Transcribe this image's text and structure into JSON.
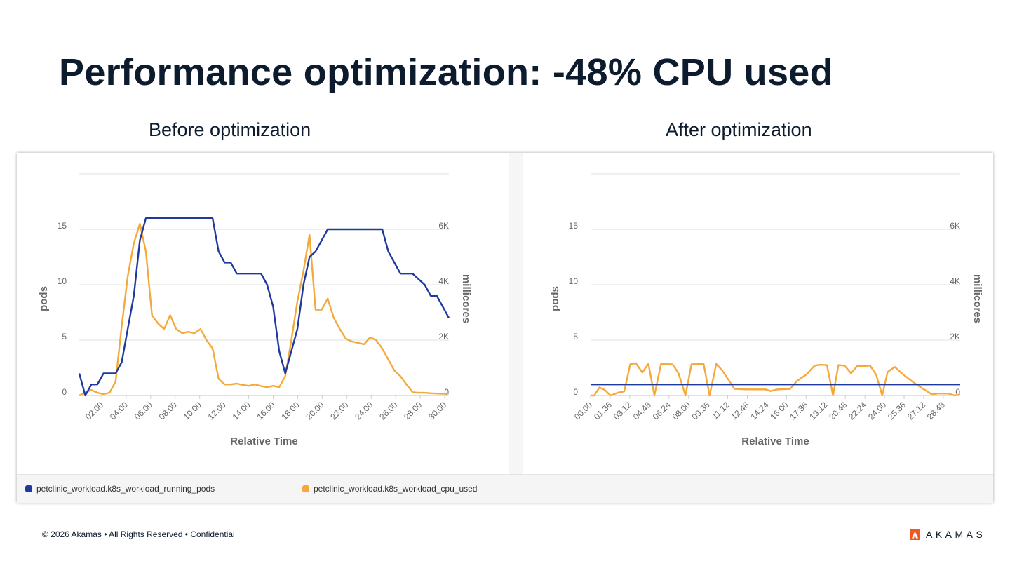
{
  "slide": {
    "title": "Performance optimization: -48% CPU used",
    "footer": "© 2026 Akamas • All Rights Reserved • Confidential",
    "logo_text": "AKAMAS"
  },
  "colors": {
    "pods": "#1f3a9e",
    "cpu": "#f5a93a",
    "logo": "#f05a22"
  },
  "legend": [
    {
      "label": "petclinic_workload.k8s_workload_running_pods",
      "color": "#1f3a9e"
    },
    {
      "label": "petclinic_workload.k8s_workload_cpu_used",
      "color": "#f5a93a"
    }
  ],
  "chart_data": [
    {
      "type": "line",
      "title": "Before optimization",
      "xlabel": "Relative Time",
      "ylabel": "pods",
      "y2label": "millicores",
      "xlim": [
        0.17,
        30.34
      ],
      "ylim": [
        0,
        20
      ],
      "y2lim": [
        0,
        8000
      ],
      "grid": true,
      "yticks": [
        {
          "v": 0,
          "label": "0"
        },
        {
          "v": 5,
          "label": "5"
        },
        {
          "v": 10,
          "label": "10"
        },
        {
          "v": 15,
          "label": "15"
        },
        {
          "v": 20,
          "label": ""
        }
      ],
      "y2ticks": [
        {
          "v": 0,
          "label": "0"
        },
        {
          "v": 2000,
          "label": "2K"
        },
        {
          "v": 4000,
          "label": "4K"
        },
        {
          "v": 6000,
          "label": "6K"
        }
      ],
      "xticks": [
        {
          "v": 2,
          "label": "02:00"
        },
        {
          "v": 4,
          "label": "04:00"
        },
        {
          "v": 6,
          "label": "06:00"
        },
        {
          "v": 8,
          "label": "08:00"
        },
        {
          "v": 10,
          "label": "10:00"
        },
        {
          "v": 12,
          "label": "12:00"
        },
        {
          "v": 14,
          "label": "14:00"
        },
        {
          "v": 16,
          "label": "16:00"
        },
        {
          "v": 18,
          "label": "18:00"
        },
        {
          "v": 20,
          "label": "20:00"
        },
        {
          "v": 22,
          "label": "22:00"
        },
        {
          "v": 24,
          "label": "24:00"
        },
        {
          "v": 26,
          "label": "26:00"
        },
        {
          "v": 28,
          "label": "28:00"
        },
        {
          "v": 30,
          "label": "30:00"
        }
      ],
      "x_start": 0.17,
      "x_step": 0.4946,
      "series": [
        {
          "name": "petclinic_workload.k8s_workload_running_pods",
          "axis": "left",
          "values": [
            2,
            0,
            1,
            1,
            2,
            2,
            2,
            3,
            6,
            9,
            14,
            16,
            16,
            16,
            16,
            16,
            16,
            16,
            16,
            16,
            16,
            16,
            16,
            13,
            12,
            12,
            11,
            11,
            11,
            11,
            11,
            10,
            8,
            4,
            2,
            4,
            6,
            10,
            12.5,
            13,
            14,
            15,
            15,
            15,
            15,
            15,
            15,
            15,
            15,
            15,
            15,
            13,
            12,
            11,
            11,
            11,
            10.5,
            10,
            9,
            9,
            8,
            7
          ]
        },
        {
          "name": "petclinic_workload.k8s_workload_cpu_used",
          "axis": "right",
          "values": [
            0,
            100,
            200,
            100,
            50,
            100,
            500,
            2500,
            4300,
            5500,
            6200,
            5200,
            2900,
            2600,
            2400,
            2900,
            2400,
            2250,
            2300,
            2250,
            2400,
            2000,
            1700,
            600,
            400,
            400,
            430,
            380,
            350,
            400,
            340,
            300,
            350,
            300,
            700,
            2000,
            3400,
            4500,
            5800,
            3100,
            3100,
            3500,
            2800,
            2400,
            2050,
            1950,
            1900,
            1850,
            2100,
            2000,
            1700,
            1300,
            900,
            700,
            400,
            120,
            100,
            100,
            80,
            70,
            60,
            80
          ]
        }
      ]
    },
    {
      "type": "line",
      "title": "After optimization",
      "xlabel": "Relative Time",
      "ylabel": "pods",
      "y2label": "millicores",
      "xlim": [
        0,
        30.18
      ],
      "ylim": [
        0,
        20
      ],
      "y2lim": [
        0,
        8000
      ],
      "grid": true,
      "yticks": [
        {
          "v": 0,
          "label": "0"
        },
        {
          "v": 5,
          "label": "5"
        },
        {
          "v": 10,
          "label": "10"
        },
        {
          "v": 15,
          "label": "15"
        },
        {
          "v": 20,
          "label": ""
        }
      ],
      "y2ticks": [
        {
          "v": 0,
          "label": "0"
        },
        {
          "v": 2000,
          "label": "2K"
        },
        {
          "v": 4000,
          "label": "4K"
        },
        {
          "v": 6000,
          "label": "6K"
        }
      ],
      "xticks": [
        {
          "v": 0,
          "label": "00:00"
        },
        {
          "v": 1.6,
          "label": "01:36"
        },
        {
          "v": 3.2,
          "label": "03:12"
        },
        {
          "v": 4.8,
          "label": "04:48"
        },
        {
          "v": 6.4,
          "label": "06:24"
        },
        {
          "v": 8,
          "label": "08:00"
        },
        {
          "v": 9.6,
          "label": "09:36"
        },
        {
          "v": 11.2,
          "label": "11:12"
        },
        {
          "v": 12.8,
          "label": "12:48"
        },
        {
          "v": 14.4,
          "label": "14:24"
        },
        {
          "v": 16,
          "label": "16:00"
        },
        {
          "v": 17.6,
          "label": "17:36"
        },
        {
          "v": 19.2,
          "label": "19:12"
        },
        {
          "v": 20.8,
          "label": "20:48"
        },
        {
          "v": 22.4,
          "label": "22:24"
        },
        {
          "v": 24,
          "label": "24:00"
        },
        {
          "v": 25.6,
          "label": "25:36"
        },
        {
          "v": 27.2,
          "label": "27:12"
        },
        {
          "v": 28.8,
          "label": "28:48"
        }
      ],
      "series": [
        {
          "name": "petclinic_workload.k8s_workload_running_pods",
          "axis": "left",
          "points": [
            [
              0,
              1
            ],
            [
              30.18,
              1
            ]
          ]
        },
        {
          "name": "petclinic_workload.k8s_workload_cpu_used",
          "axis": "right",
          "points": [
            [
              0,
              0
            ],
            [
              0.29,
              0
            ],
            [
              0.73,
              290
            ],
            [
              1.15,
              200
            ],
            [
              1.64,
              0
            ],
            [
              2.21,
              100
            ],
            [
              2.75,
              150
            ],
            [
              3.24,
              1130
            ],
            [
              3.69,
              1170
            ],
            [
              4.23,
              830
            ],
            [
              4.72,
              1150
            ],
            [
              5.21,
              0
            ],
            [
              5.75,
              1140
            ],
            [
              6.69,
              1130
            ],
            [
              7.18,
              800
            ],
            [
              7.75,
              0
            ],
            [
              8.24,
              1130
            ],
            [
              9.23,
              1140
            ],
            [
              9.72,
              0
            ],
            [
              10.26,
              1140
            ],
            [
              10.76,
              900
            ],
            [
              11.74,
              240
            ],
            [
              12.73,
              220
            ],
            [
              14.28,
              220
            ],
            [
              14.7,
              160
            ],
            [
              15.26,
              220
            ],
            [
              16.3,
              240
            ],
            [
              16.84,
              520
            ],
            [
              17.65,
              770
            ],
            [
              18.27,
              1070
            ],
            [
              18.64,
              1110
            ],
            [
              19.3,
              1100
            ],
            [
              19.8,
              0
            ],
            [
              20.24,
              1100
            ],
            [
              20.73,
              1080
            ],
            [
              21.27,
              800
            ],
            [
              21.76,
              1060
            ],
            [
              22.33,
              1060
            ],
            [
              22.82,
              1080
            ],
            [
              23.32,
              750
            ],
            [
              23.81,
              0
            ],
            [
              24.25,
              850
            ],
            [
              24.84,
              1030
            ],
            [
              25.41,
              800
            ],
            [
              26.4,
              460
            ],
            [
              27.26,
              210
            ],
            [
              27.87,
              40
            ],
            [
              28.36,
              70
            ],
            [
              29.23,
              70
            ],
            [
              29.72,
              0
            ],
            [
              30.18,
              40
            ]
          ]
        }
      ]
    }
  ]
}
